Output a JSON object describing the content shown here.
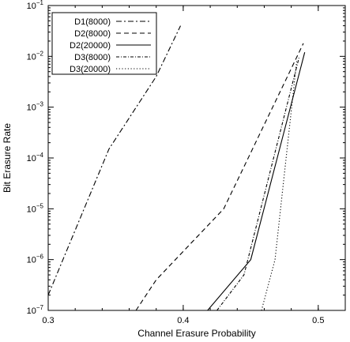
{
  "chart_data": {
    "type": "line",
    "title": "",
    "xlabel": "Channel Erasure Probability",
    "ylabel": "Bit Erasure Rate",
    "xlim": [
      0.3,
      0.52
    ],
    "ylim_log10": [
      -7,
      -1
    ],
    "y_scale": "log",
    "grid": false,
    "legend_position": "top-left",
    "x_ticks": [
      {
        "value": 0.3,
        "label": "0.3"
      },
      {
        "value": 0.4,
        "label": "0.4"
      },
      {
        "value": 0.5,
        "label": "0.5"
      }
    ],
    "y_ticks": [
      {
        "exp": -7,
        "base": "10",
        "sup": "−7"
      },
      {
        "exp": -6,
        "base": "10",
        "sup": "−6"
      },
      {
        "exp": -5,
        "base": "10",
        "sup": "−5"
      },
      {
        "exp": -4,
        "base": "10",
        "sup": "−4"
      },
      {
        "exp": -3,
        "base": "10",
        "sup": "−3"
      },
      {
        "exp": -2,
        "base": "10",
        "sup": "−2"
      },
      {
        "exp": -1,
        "base": "10",
        "sup": "−1"
      }
    ],
    "series": [
      {
        "name": "D1(8000)",
        "dash": "7,3,2,3",
        "points": [
          [
            0.3,
            2e-07
          ],
          [
            0.345,
            0.00015
          ],
          [
            0.38,
            0.004
          ],
          [
            0.398,
            0.04
          ]
        ]
      },
      {
        "name": "D2(8000)",
        "dash": "6,4",
        "points": [
          [
            0.365,
            1e-07
          ],
          [
            0.38,
            4e-07
          ],
          [
            0.43,
            1e-05
          ],
          [
            0.489,
            0.018
          ]
        ]
      },
      {
        "name": "D2(20000)",
        "dash": "",
        "points": [
          [
            0.418,
            1e-07
          ],
          [
            0.45,
            1e-06
          ],
          [
            0.49,
            0.012
          ]
        ]
      },
      {
        "name": "D3(8000)",
        "dash": "4,2,1,2",
        "points": [
          [
            0.425,
            1e-07
          ],
          [
            0.445,
            5e-07
          ],
          [
            0.486,
            0.01
          ]
        ]
      },
      {
        "name": "D3(20000)",
        "dash": "1.2,2.5",
        "points": [
          [
            0.458,
            1e-07
          ],
          [
            0.468,
            1e-06
          ],
          [
            0.484,
            0.008
          ]
        ]
      }
    ]
  }
}
